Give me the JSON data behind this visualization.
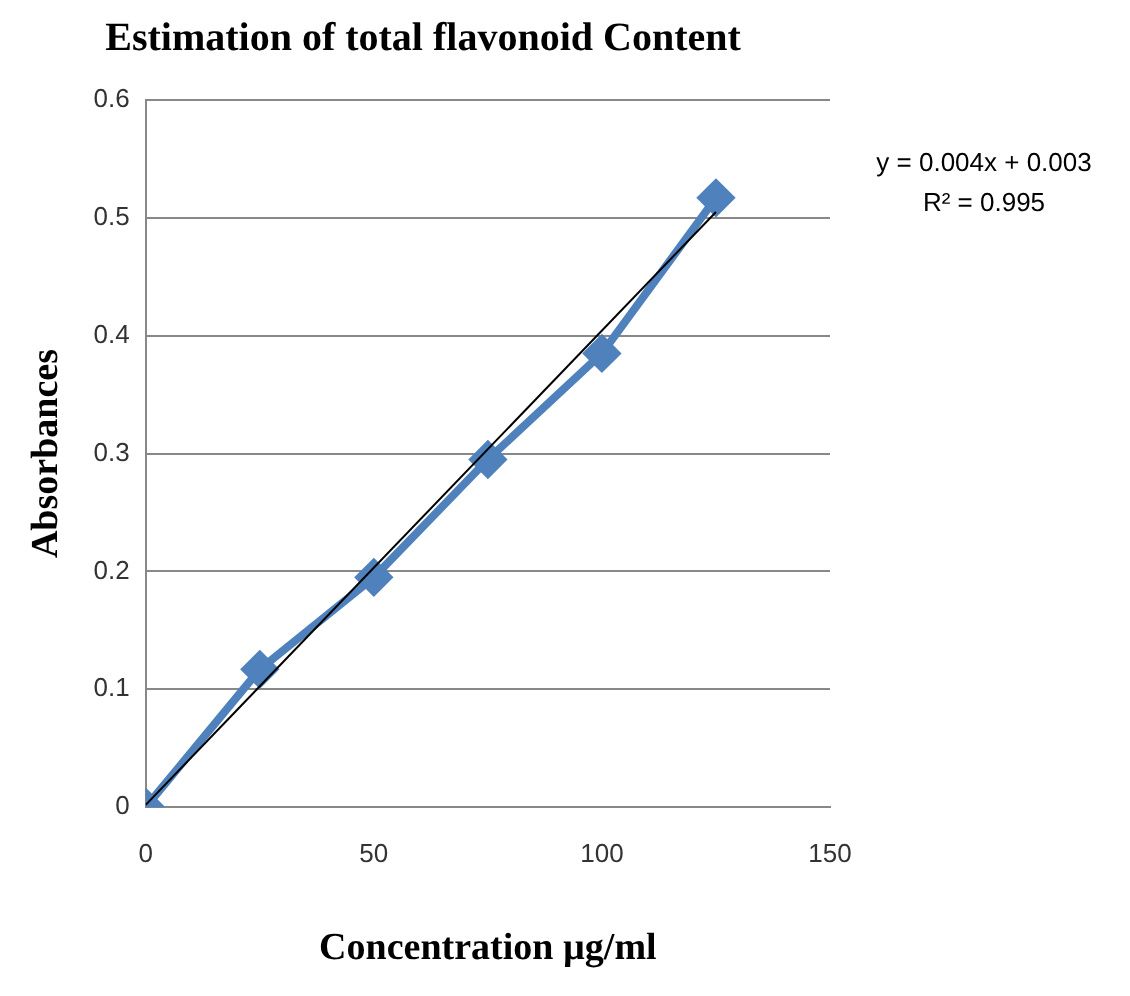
{
  "chart_data": {
    "type": "line",
    "title": "Estimation of total flavonoid Content",
    "xlabel": "Concentration µg/ml",
    "ylabel": "Absorbances",
    "x": [
      0,
      25,
      50,
      75,
      100,
      125
    ],
    "series": [
      {
        "color": "#4f81bd",
        "marker": "diamond",
        "values": [
          0,
          0.117,
          0.195,
          0.295,
          0.385,
          0.517
        ]
      },
      {
        "type": "line",
        "color": "#000000",
        "marker": "none",
        "x": [
          0,
          125
        ],
        "values": [
          0.002,
          0.505
        ]
      }
    ],
    "xlim": [
      0,
      150
    ],
    "xticks": [
      0,
      50,
      100,
      150
    ],
    "ylim": [
      0,
      0.6
    ],
    "yticks": [
      0,
      0.1,
      0.2,
      0.3,
      0.4,
      0.5,
      0.6
    ],
    "grid": "y",
    "legend": false,
    "annotations": [
      "y = 0.004x + 0.003",
      "R² = 0.995"
    ]
  }
}
